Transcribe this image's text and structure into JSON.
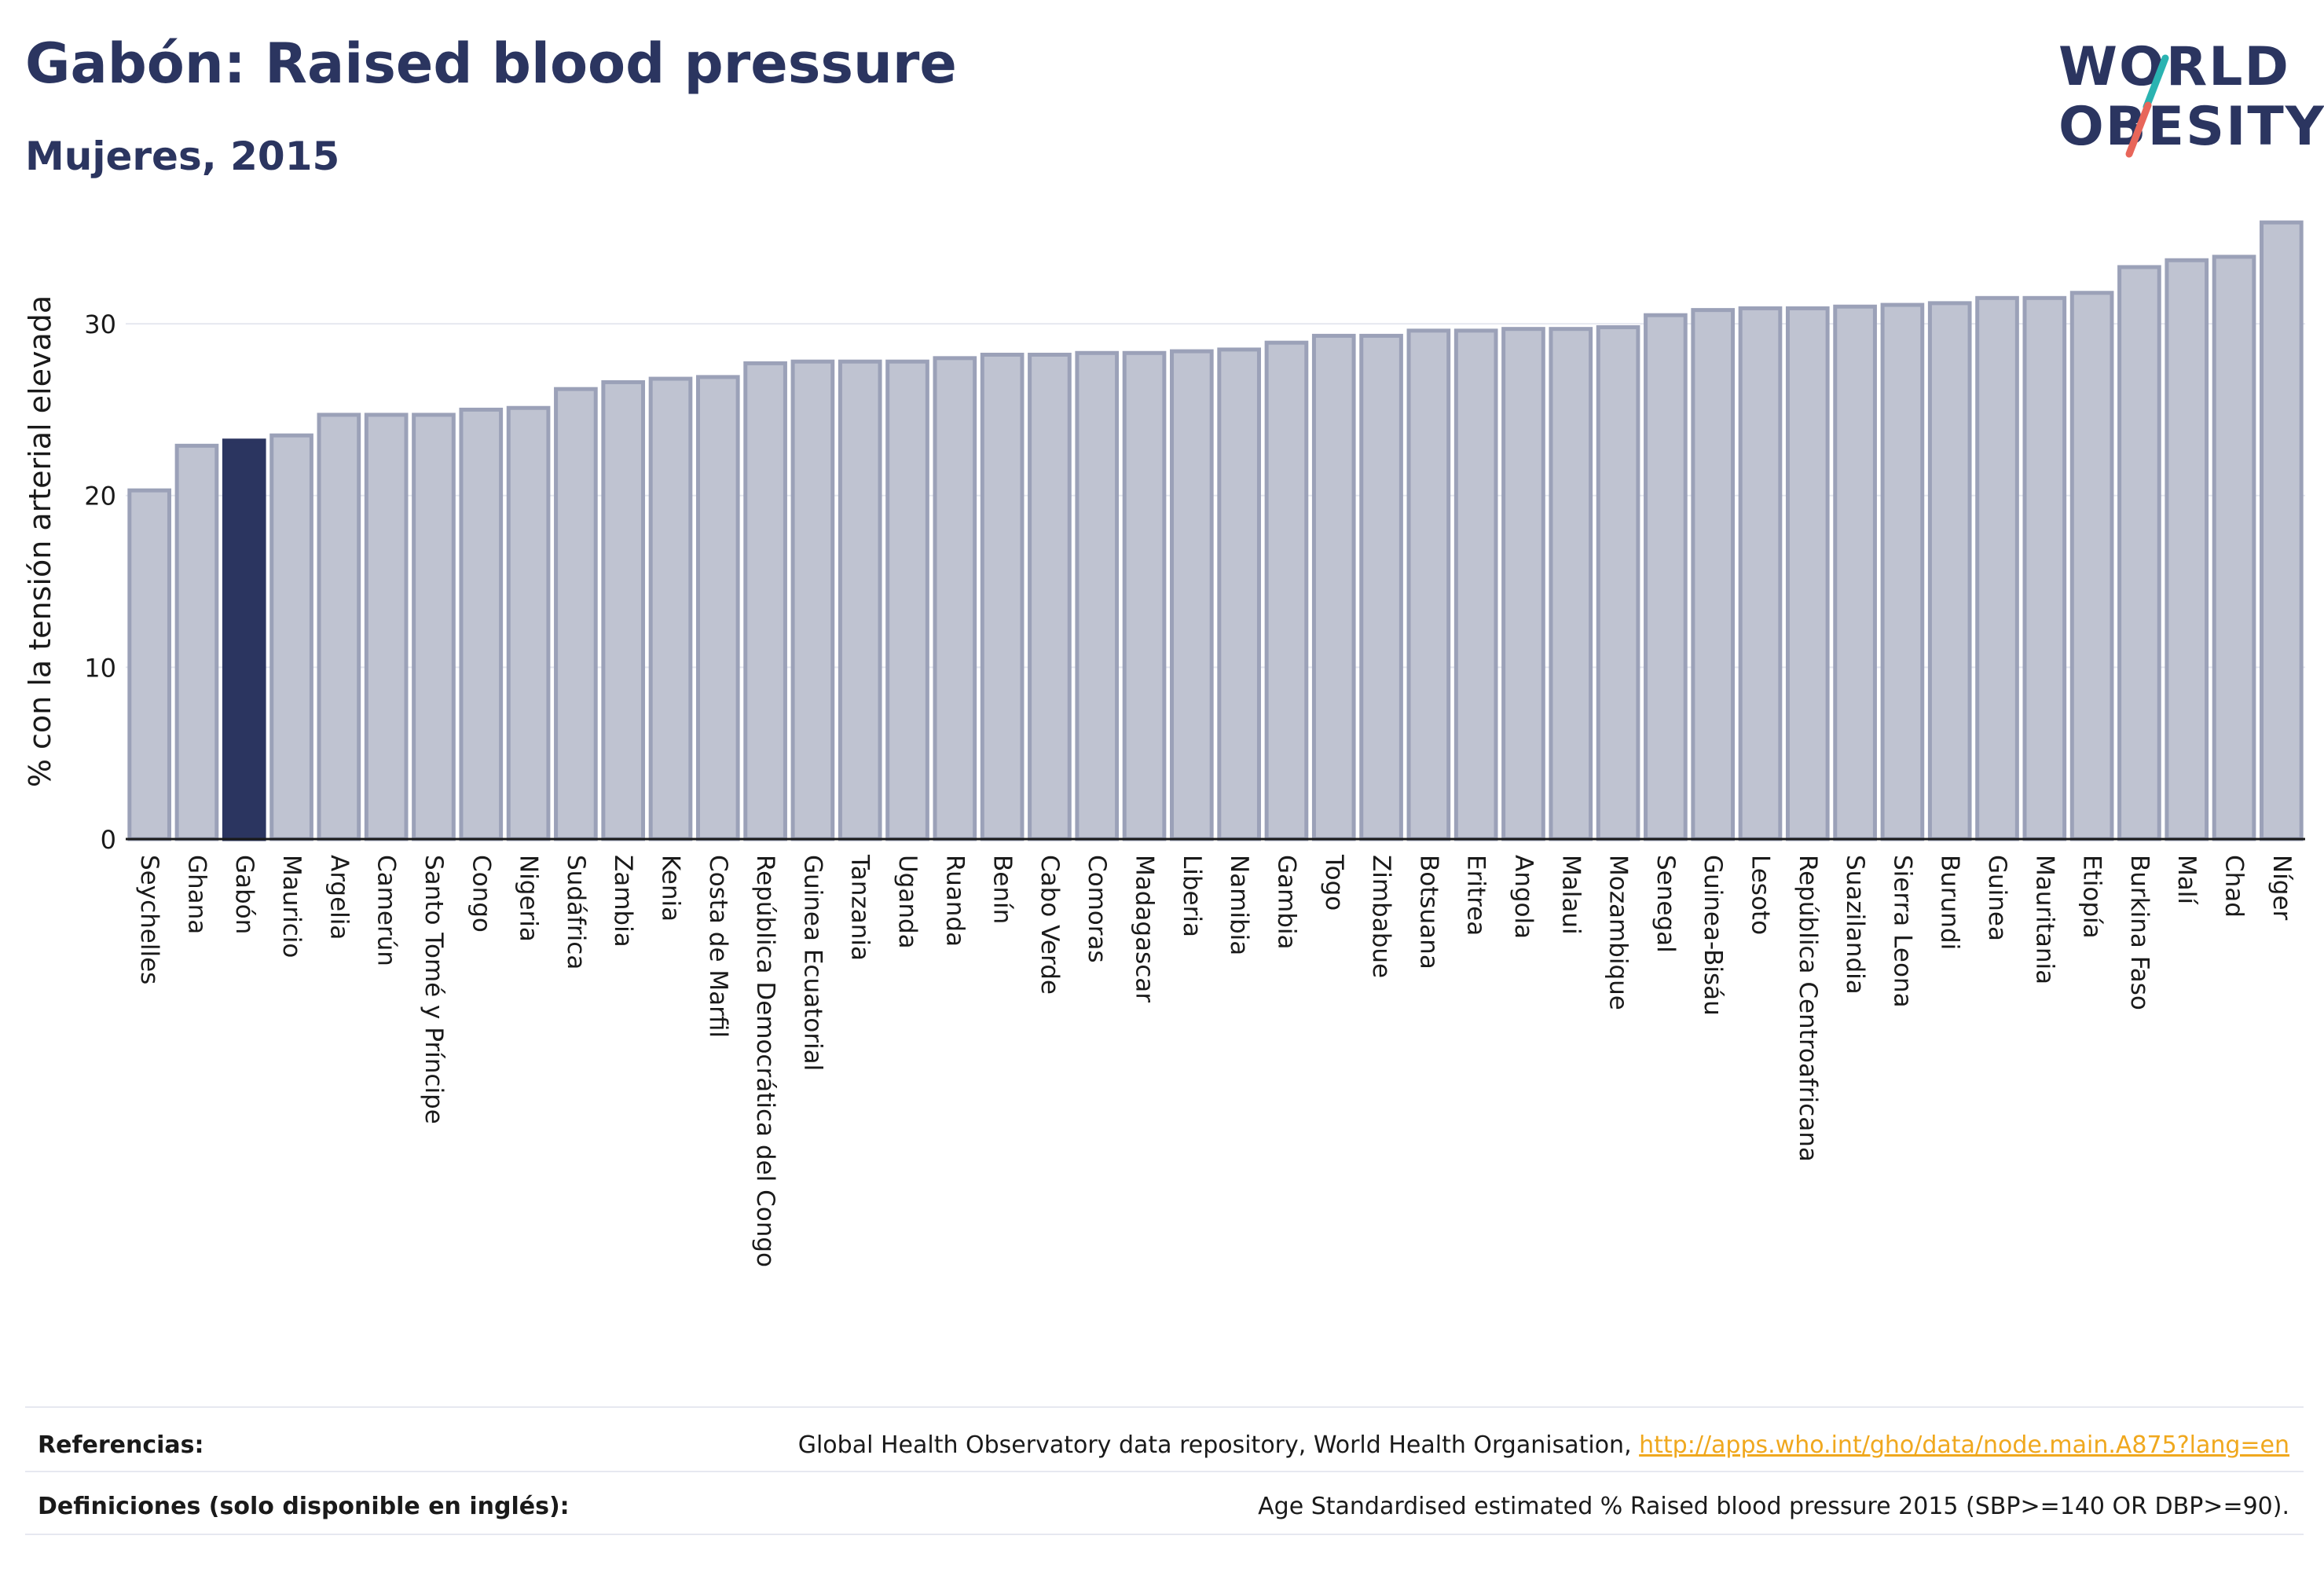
{
  "header": {
    "title": "Gabón: Raised blood pressure",
    "subtitle": "Mujeres, 2015"
  },
  "logo": {
    "line1": "WORLD",
    "line2": "OBESITY",
    "accent_colors": [
      "#2ab3b1",
      "#e8665a"
    ]
  },
  "colors": {
    "bar": "#bfc3d1",
    "bar_stroke": "#9ba1b8",
    "highlight": "#2b3560",
    "text": "#2b3560",
    "grid": "#e6e8f0",
    "link": "#f0a81e"
  },
  "chart_data": {
    "type": "bar",
    "ylabel": "% con la tensión arterial elevada",
    "xlabel": "",
    "ylim": [
      0,
      36.5
    ],
    "yticks": [
      0,
      10,
      20,
      30
    ],
    "grid": true,
    "highlight": "Gabón",
    "categories": [
      "Seychelles",
      "Ghana",
      "Gabón",
      "Mauricio",
      "Argelia",
      "Camerún",
      "Santo Tomé y Príncipe",
      "Congo",
      "Nigeria",
      "Sudáfrica",
      "Zambia",
      "Kenia",
      "Costa de Marfil",
      "República Democrática del Congo",
      "Guinea Ecuatorial",
      "Tanzania",
      "Uganda",
      "Ruanda",
      "Benín",
      "Cabo Verde",
      "Comoras",
      "Madagascar",
      "Liberia",
      "Namibia",
      "Gambia",
      "Togo",
      "Zimbabue",
      "Botsuana",
      "Eritrea",
      "Angola",
      "Malaui",
      "Mozambique",
      "Senegal",
      "Guinea-Bisáu",
      "Lesoto",
      "República Centroafricana",
      "Suazilandia",
      "Sierra Leona",
      "Burundi",
      "Guinea",
      "Mauritania",
      "Etiopía",
      "Burkina Faso",
      "Malí",
      "Chad",
      "Níger"
    ],
    "values": [
      20.3,
      22.9,
      23.2,
      23.5,
      24.7,
      24.7,
      24.7,
      25.0,
      25.1,
      26.2,
      26.6,
      26.8,
      26.9,
      27.7,
      27.8,
      27.8,
      27.8,
      28.0,
      28.2,
      28.2,
      28.3,
      28.3,
      28.4,
      28.5,
      28.9,
      29.3,
      29.3,
      29.6,
      29.6,
      29.7,
      29.7,
      29.8,
      30.5,
      30.8,
      30.9,
      30.9,
      31.0,
      31.1,
      31.2,
      31.5,
      31.5,
      31.8,
      33.3,
      33.7,
      33.9,
      35.9
    ]
  },
  "footer": {
    "references_label": "Referencias:",
    "references_text": "Global Health Observatory data repository, World Health Organisation, ",
    "references_link": "http://apps.who.int/gho/data/node.main.A875?lang=en",
    "definitions_label": "Definiciones (solo disponible en inglés):",
    "definitions_text": "Age Standardised estimated % Raised blood pressure 2015 (SBP>=140 OR DBP>=90)."
  }
}
